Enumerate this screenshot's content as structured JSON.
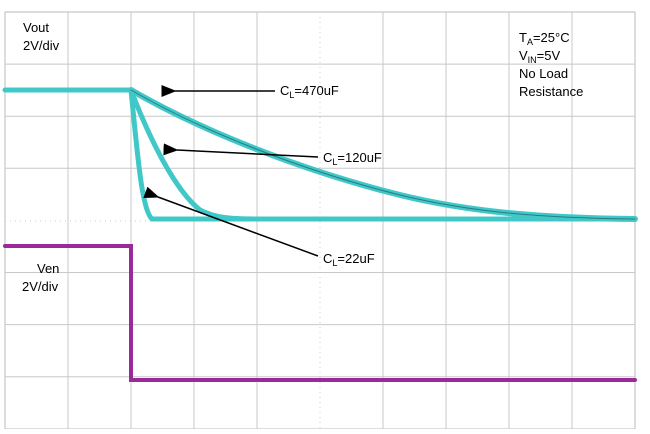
{
  "labels": {
    "vout": {
      "name": "Vout",
      "scale": "2V/div"
    },
    "ven": {
      "name": "Ven",
      "scale": "2V/div"
    },
    "conditions": {
      "ta": {
        "main": "T",
        "sub": "A",
        "rest": "=25°C"
      },
      "vin": {
        "main": "V",
        "sub": "IN",
        "rest": "=5V"
      },
      "load": "No Load",
      "resistance": "Resistance"
    },
    "curves": [
      {
        "main": "C",
        "sub": "L",
        "rest": "=470uF"
      },
      {
        "main": "C",
        "sub": "L",
        "rest": "=120uF"
      },
      {
        "main": "C",
        "sub": "L",
        "rest": "=22uF"
      }
    ]
  }
}
